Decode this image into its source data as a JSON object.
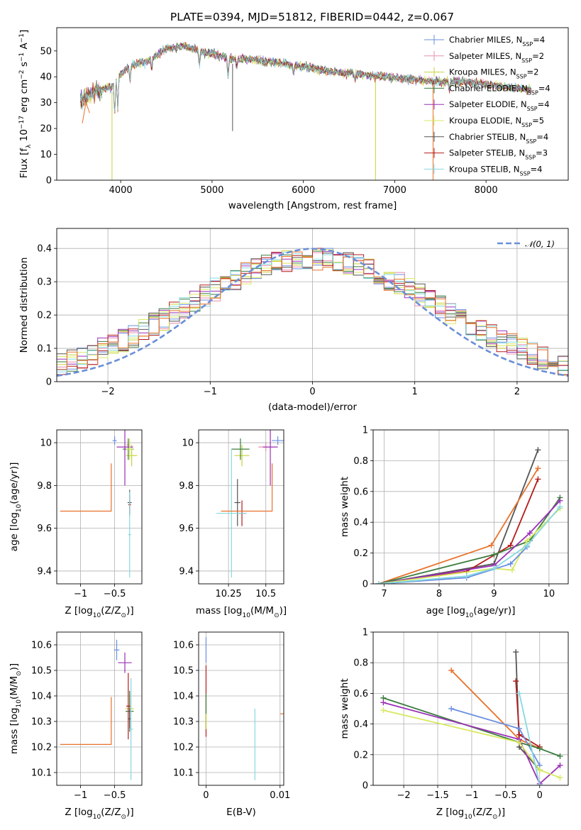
{
  "figure": {
    "title": "PLATE=0394, MJD=51812, FIBERID=0442, z=0.067"
  },
  "colors": {
    "Chabrier MILES": "#6a8fe0",
    "Salpeter MILES": "#e88fb0",
    "Kroupa MILES": "#c9d23a",
    "Chabrier ELODIE": "#3b7d3e",
    "Salpeter ELODIE": "#9b30b7",
    "Kroupa ELODIE": "#d8e860",
    "Chabrier STELIB": "#555555",
    "Salpeter STELIB": "#b51c1c",
    "Kroupa STELIB": "#86d9e0",
    "orange": "#e8712a"
  },
  "chart_data": [
    {
      "id": "spectrum",
      "type": "line",
      "title": "PLATE=0394, MJD=51812, FIBERID=0442, z=0.067",
      "xlabel": "wavelength [Angstrom, rest frame]",
      "ylabel": "Flux [f_λ 10^-17 erg cm^-2 s^-1 A^-1]",
      "xlim": [
        3300,
        8900
      ],
      "ylim": [
        0,
        59
      ],
      "x_ticks": [
        4000,
        5000,
        6000,
        7000,
        8000
      ],
      "y_ticks": [
        0,
        10,
        20,
        30,
        40,
        50
      ],
      "legend_position": "top-right",
      "legend": [
        {
          "label": "Chabrier MILES",
          "nssp": 4
        },
        {
          "label": "Salpeter MILES",
          "nssp": 2
        },
        {
          "label": "Kroupa MILES",
          "nssp": 2
        },
        {
          "label": "Chabrier ELODIE",
          "nssp": 4
        },
        {
          "label": "Salpeter ELODIE",
          "nssp": 4
        },
        {
          "label": "Kroupa ELODIE",
          "nssp": 5
        },
        {
          "label": "Chabrier STELIB",
          "nssp": 4
        },
        {
          "label": "Salpeter STELIB",
          "nssp": 3
        },
        {
          "label": "Kroupa STELIB",
          "nssp": 4
        }
      ],
      "continuum_x": [
        3550,
        3700,
        3900,
        4000,
        4100,
        4300,
        4500,
        4700,
        4850,
        5000,
        5200,
        5400,
        5600,
        5800,
        6000,
        6300,
        6600,
        6900,
        7200,
        7500,
        7800,
        8000,
        8200,
        8500
      ],
      "continuum_y": [
        31,
        34,
        36,
        41,
        44,
        46,
        51,
        52,
        50,
        49,
        47,
        47,
        46,
        45,
        44,
        42,
        41,
        40,
        39,
        38,
        38,
        37,
        36,
        35
      ]
    },
    {
      "id": "residuals",
      "type": "line",
      "xlabel": "(data-model)/error",
      "ylabel": "Normed distribution",
      "xlim": [
        -2.5,
        2.5
      ],
      "ylim": [
        0,
        0.46
      ],
      "x_ticks": [
        -2,
        -1,
        0,
        1,
        2
      ],
      "y_ticks": [
        0.0,
        0.1,
        0.2,
        0.3,
        0.4
      ],
      "legend_position": "top-right",
      "legend": [
        {
          "label": "N(0,1)"
        }
      ],
      "bin_edges": [
        -2.5,
        2.5
      ],
      "bin_width": 0.1
    },
    {
      "id": "age-vs-Z",
      "type": "scatter",
      "xlabel": "Z [log10(Z/Z☉)]",
      "ylabel": "age  [log10(age/yr)]",
      "xlim": [
        -1.35,
        -0.1
      ],
      "ylim": [
        9.34,
        10.06
      ],
      "x_ticks": [
        -1.0,
        -0.5
      ],
      "y_ticks": [
        9.4,
        9.6,
        9.8,
        10.0
      ],
      "points": [
        {
          "series": "Chabrier MILES",
          "x": -0.5,
          "y": 10.01,
          "xerr": 0.03,
          "yerr": 0.02
        },
        {
          "series": "Salpeter MILES",
          "x": -0.3,
          "y": 9.99,
          "xerr": 0.03,
          "yerr": 0.02
        },
        {
          "series": "Kroupa MILES",
          "x": -0.25,
          "y": 9.94,
          "xerr": 0.08,
          "yerr": 0.05
        },
        {
          "series": "Chabrier ELODIE",
          "x": -0.3,
          "y": 9.97,
          "xerr": 0.08,
          "yerr": 0.05
        },
        {
          "series": "Salpeter ELODIE",
          "x": -0.35,
          "y": 9.98,
          "xerr": 0.12,
          "yerr": 0.18
        },
        {
          "series": "Kroupa ELODIE",
          "x": -0.28,
          "y": 9.97,
          "xerr": 0.05,
          "yerr": 0.05
        },
        {
          "series": "Chabrier STELIB",
          "x": -0.28,
          "y": 9.72,
          "xerr": 0.03,
          "yerr": 0.06
        },
        {
          "series": "Salpeter STELIB",
          "x": -0.28,
          "y": 9.71,
          "xerr": 0.02,
          "yerr": 0.04
        },
        {
          "series": "Kroupa STELIB",
          "x": -0.28,
          "y": 9.57,
          "xerr": 0.02,
          "yerr": 0.2
        },
        {
          "series": "orange",
          "x": -1.3,
          "y": 9.68,
          "xerr": 0.0,
          "yerr": 0.0
        }
      ]
    },
    {
      "id": "age-vs-mass",
      "type": "scatter",
      "xlabel": "mass [log10(M/M☉)]",
      "ylabel": "",
      "xlim": [
        10.05,
        10.62
      ],
      "ylim": [
        9.34,
        10.06
      ],
      "x_ticks": [
        10.25,
        10.5
      ],
      "y_ticks": [
        9.4,
        9.6,
        9.8,
        10.0
      ],
      "points": [
        {
          "series": "Chabrier MILES",
          "x": 10.58,
          "y": 10.01,
          "xerr": 0.04,
          "yerr": 0.02
        },
        {
          "series": "Salpeter MILES",
          "x": 10.5,
          "y": 9.98,
          "xerr": 0.05,
          "yerr": 0.02
        },
        {
          "series": "Kroupa MILES",
          "x": 10.34,
          "y": 9.94,
          "xerr": 0.05,
          "yerr": 0.05
        },
        {
          "series": "Chabrier ELODIE",
          "x": 10.33,
          "y": 9.97,
          "xerr": 0.06,
          "yerr": 0.05
        },
        {
          "series": "Salpeter ELODIE",
          "x": 10.53,
          "y": 9.98,
          "xerr": 0.05,
          "yerr": 0.18
        },
        {
          "series": "Chabrier STELIB",
          "x": 10.31,
          "y": 9.72,
          "xerr": 0.02,
          "yerr": 0.11
        },
        {
          "series": "Salpeter STELIB",
          "x": 10.34,
          "y": 9.67,
          "xerr": 0.03,
          "yerr": 0.06
        },
        {
          "series": "Kroupa STELIB",
          "x": 10.27,
          "y": 9.67,
          "xerr": 0.1,
          "yerr": 0.3
        },
        {
          "series": "orange",
          "x": 10.2,
          "y": 9.68,
          "xerr": 0.0,
          "yerr": 0.0
        }
      ]
    },
    {
      "id": "massweight-vs-age",
      "type": "line",
      "xlabel": "age  [log10(age/yr)]",
      "ylabel": "mass weight",
      "xlim": [
        6.8,
        10.35
      ],
      "ylim": [
        0,
        1
      ],
      "x_ticks": [
        7,
        8,
        9,
        10
      ],
      "y_ticks": [
        0.0,
        0.2,
        0.4,
        0.6,
        0.8,
        1.0
      ],
      "series": [
        {
          "name": "Chabrier STELIB",
          "x": [
            6.9,
            9.0,
            9.8
          ],
          "y": [
            0.0,
            0.13,
            0.87
          ]
        },
        {
          "name": "orange",
          "x": [
            6.9,
            8.95,
            9.8
          ],
          "y": [
            0.0,
            0.25,
            0.75
          ]
        },
        {
          "name": "Salpeter STELIB",
          "x": [
            6.9,
            8.5,
            9.3,
            9.8
          ],
          "y": [
            0.0,
            0.08,
            0.25,
            0.68
          ]
        },
        {
          "name": "Chabrier ELODIE",
          "x": [
            6.9,
            9.0,
            9.65,
            10.2
          ],
          "y": [
            0.0,
            0.19,
            0.28,
            0.56
          ]
        },
        {
          "name": "Salpeter ELODIE",
          "x": [
            6.9,
            9.0,
            9.65,
            10.2
          ],
          "y": [
            0.0,
            0.12,
            0.33,
            0.54
          ]
        },
        {
          "name": "Kroupa ELODIE",
          "x": [
            6.9,
            9.0,
            9.33,
            9.6,
            10.2
          ],
          "y": [
            0.0,
            0.1,
            0.09,
            0.28,
            0.49
          ]
        },
        {
          "name": "Chabrier MILES",
          "x": [
            6.9,
            8.5,
            9.3,
            9.6
          ],
          "y": [
            0.0,
            0.04,
            0.13,
            0.24
          ]
        },
        {
          "name": "Kroupa STELIB",
          "x": [
            6.9,
            8.5,
            9.0,
            9.6,
            10.2
          ],
          "y": [
            0.0,
            0.05,
            0.1,
            0.25,
            0.5
          ]
        }
      ]
    },
    {
      "id": "mass-vs-Z",
      "type": "scatter",
      "xlabel": "Z [log10(Z/Z☉)]",
      "ylabel": "mass [log10(M/M☉)]",
      "xlim": [
        -1.35,
        -0.1
      ],
      "ylim": [
        10.05,
        10.65
      ],
      "x_ticks": [
        -1.0,
        -0.5
      ],
      "y_ticks": [
        10.1,
        10.2,
        10.3,
        10.4,
        10.5,
        10.6
      ],
      "points": [
        {
          "series": "Chabrier MILES",
          "x": -0.47,
          "y": 10.58,
          "xerr": 0.04,
          "yerr": 0.04
        },
        {
          "series": "Salpeter ELODIE",
          "x": -0.35,
          "y": 10.53,
          "xerr": 0.1,
          "yerr": 0.04
        },
        {
          "series": "Kroupa MILES",
          "x": -0.28,
          "y": 10.35,
          "xerr": 0.06,
          "yerr": 0.05
        },
        {
          "series": "Chabrier ELODIE",
          "x": -0.28,
          "y": 10.34,
          "xerr": 0.06,
          "yerr": 0.08
        },
        {
          "series": "Salpeter STELIB",
          "x": -0.3,
          "y": 10.36,
          "xerr": 0.03,
          "yerr": 0.13
        },
        {
          "series": "Chabrier STELIB",
          "x": -0.28,
          "y": 10.31,
          "xerr": 0.02,
          "yerr": 0.04
        },
        {
          "series": "Kroupa STELIB",
          "x": -0.26,
          "y": 10.27,
          "xerr": 0.03,
          "yerr": 0.2
        },
        {
          "series": "orange",
          "x": -1.3,
          "y": 10.21,
          "xerr": 0.0,
          "yerr": 0.0
        }
      ]
    },
    {
      "id": "mass-vs-ebv",
      "type": "scatter",
      "xlabel": "E(B-V)",
      "ylabel": "",
      "xlim": [
        -0.001,
        0.0105
      ],
      "ylim": [
        10.05,
        10.65
      ],
      "x_ticks": [
        0.0,
        0.01
      ],
      "y_ticks": [
        10.1,
        10.2,
        10.3,
        10.4,
        10.5,
        10.6
      ],
      "points": [
        {
          "series": "Chabrier MILES",
          "x": 0.0,
          "y": 10.58,
          "xerr": 0.0,
          "yerr": 0.05
        },
        {
          "series": "Salpeter STELIB",
          "x": 0.0,
          "y": 10.38,
          "xerr": 0.0,
          "yerr": 0.14
        },
        {
          "series": "Chabrier ELODIE",
          "x": 0.0,
          "y": 10.34,
          "xerr": 0.0,
          "yerr": 0.07
        },
        {
          "series": "Kroupa MILES",
          "x": 0.0,
          "y": 10.3,
          "xerr": 0.0,
          "yerr": 0.03
        },
        {
          "series": "Kroupa STELIB",
          "x": 0.0066,
          "y": 10.21,
          "xerr": 0.0,
          "yerr": 0.14
        },
        {
          "series": "orange",
          "x": 0.01,
          "y": 10.33,
          "xerr": 0.0,
          "yerr": 0.12
        }
      ]
    },
    {
      "id": "massweight-vs-Z",
      "type": "line",
      "xlabel": "Z [log10(Z/Z☉)]",
      "ylabel": "mass weight",
      "xlim": [
        -2.45,
        0.42
      ],
      "ylim": [
        0,
        1
      ],
      "x_ticks": [
        -2.0,
        -1.5,
        -1.0,
        -0.5,
        0.0
      ],
      "y_ticks": [
        0.0,
        0.2,
        0.4,
        0.6,
        0.8,
        1.0
      ],
      "series": [
        {
          "name": "Chabrier STELIB",
          "x": [
            -0.35,
            -0.3,
            0.0
          ],
          "y": [
            0.87,
            0.25,
            0.1
          ]
        },
        {
          "name": "orange",
          "x": [
            -1.3,
            -0.3,
            0.0
          ],
          "y": [
            0.75,
            0.3,
            0.24
          ]
        },
        {
          "name": "Salpeter STELIB",
          "x": [
            -0.35,
            -0.3,
            0.0
          ],
          "y": [
            0.68,
            0.33,
            0.25
          ]
        },
        {
          "name": "Chabrier MILES",
          "x": [
            -1.3,
            -0.3,
            0.0
          ],
          "y": [
            0.5,
            0.37,
            0.13
          ]
        },
        {
          "name": "Chabrier ELODIE",
          "x": [
            -2.3,
            -0.3,
            0.0,
            0.3
          ],
          "y": [
            0.57,
            0.28,
            0.24,
            0.19
          ]
        },
        {
          "name": "Salpeter ELODIE",
          "x": [
            -2.3,
            -0.3,
            0.0,
            0.3
          ],
          "y": [
            0.54,
            0.3,
            0.01,
            0.13
          ]
        },
        {
          "name": "Kroupa ELODIE",
          "x": [
            -2.3,
            -0.3,
            0.0,
            0.3
          ],
          "y": [
            0.49,
            0.28,
            0.1,
            0.05
          ]
        },
        {
          "name": "Kroupa STELIB",
          "x": [
            -0.3,
            0.0
          ],
          "y": [
            0.6,
            0.0
          ]
        }
      ]
    }
  ]
}
